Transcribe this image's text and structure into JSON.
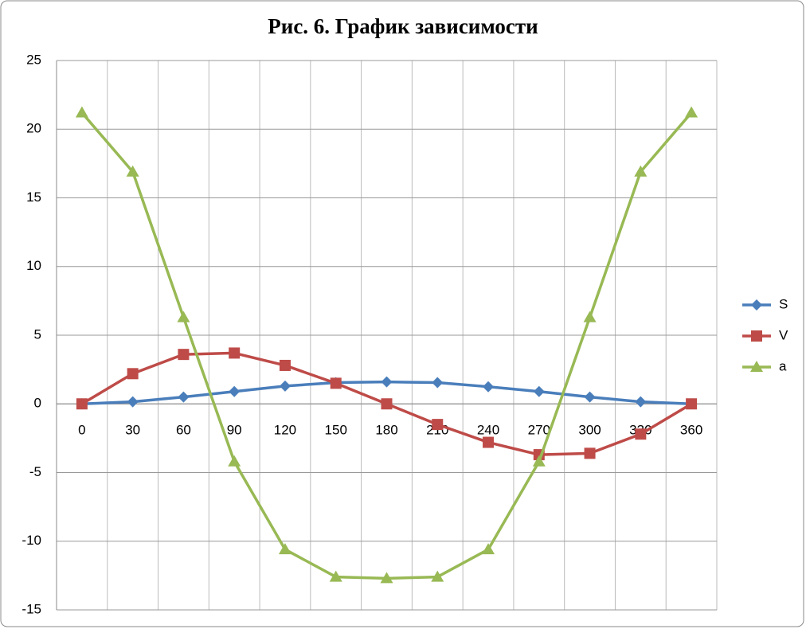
{
  "chart_data": {
    "type": "line",
    "title": "Рис. 6. График зависимости",
    "categories": [
      "0",
      "30",
      "60",
      "90",
      "120",
      "150",
      "180",
      "210",
      "240",
      "270",
      "300",
      "330",
      "360"
    ],
    "series": [
      {
        "name": "S",
        "color": "#4a7ebb",
        "marker": "diamond",
        "values": [
          0,
          0.15,
          0.5,
          0.9,
          1.3,
          1.55,
          1.6,
          1.55,
          1.25,
          0.9,
          0.5,
          0.15,
          0
        ]
      },
      {
        "name": "V",
        "color": "#be4b48",
        "marker": "square",
        "values": [
          0,
          2.2,
          3.6,
          3.7,
          2.8,
          1.5,
          0,
          -1.5,
          -2.8,
          -3.7,
          -3.6,
          -2.2,
          0
        ]
      },
      {
        "name": "a",
        "color": "#98b954",
        "marker": "triangle",
        "values": [
          21.2,
          16.9,
          6.3,
          -4.2,
          -10.6,
          -12.6,
          -12.7,
          -12.6,
          -10.6,
          -4.2,
          6.3,
          16.9,
          21.2
        ]
      }
    ],
    "ylim": [
      -15,
      25
    ],
    "yticks": [
      -15,
      -10,
      -5,
      0,
      5,
      10,
      15,
      20,
      25
    ],
    "grid": true,
    "legend": "right"
  }
}
